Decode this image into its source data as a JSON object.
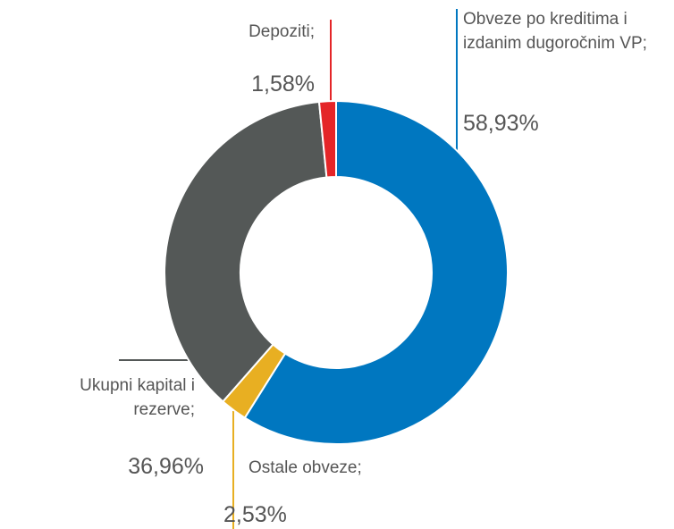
{
  "chart_data": {
    "type": "donut",
    "categories": [
      "Obveze po kreditima i izdanim dugoročnim VP;",
      "Ostale obveze;",
      "Ukupni kapital i rezerve;",
      "Depoziti;"
    ],
    "values": [
      58.93,
      2.53,
      36.96,
      1.58
    ],
    "value_labels": [
      "58,93%",
      "2,53%",
      "36,96%",
      "1,58%"
    ],
    "colors": [
      "#0077c0",
      "#e8af22",
      "#545857",
      "#e42528"
    ]
  }
}
